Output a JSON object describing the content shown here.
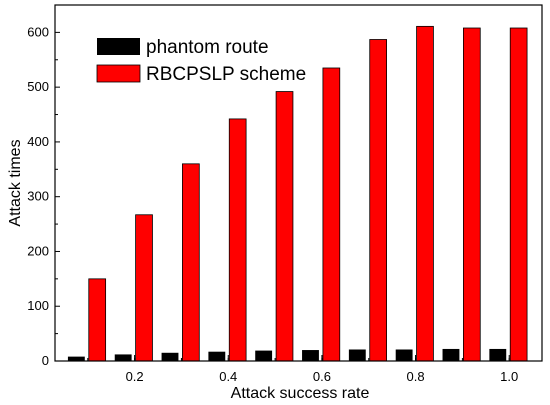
{
  "chart_data": {
    "type": "bar",
    "title": "",
    "xlabel": "Attack success rate",
    "ylabel": "Attack times",
    "categories": [
      0.1,
      0.2,
      0.3,
      0.4,
      0.5,
      0.6,
      0.7,
      0.8,
      0.9,
      1.0
    ],
    "x_ticks": [
      "0.2",
      "0.4",
      "0.6",
      "0.8",
      "1.0"
    ],
    "x_tick_values": [
      0.2,
      0.4,
      0.6,
      0.8,
      1.0
    ],
    "xlim": [
      0.03,
      1.07
    ],
    "ylim": [
      0,
      650
    ],
    "y_ticks": [
      "0",
      "100",
      "200",
      "300",
      "400",
      "500",
      "600"
    ],
    "y_tick_values": [
      0,
      100,
      200,
      300,
      400,
      500,
      600
    ],
    "series": [
      {
        "name": "phantom route",
        "color": "#000000",
        "values": [
          8,
          12,
          15,
          17,
          19,
          20,
          21,
          21,
          22,
          22
        ]
      },
      {
        "name": "RBCPSLP scheme",
        "color": "#ff0000",
        "values": [
          150,
          267,
          360,
          442,
          492,
          535,
          587,
          611,
          608,
          608
        ]
      }
    ],
    "legend_position": "top-left",
    "grid": false
  }
}
